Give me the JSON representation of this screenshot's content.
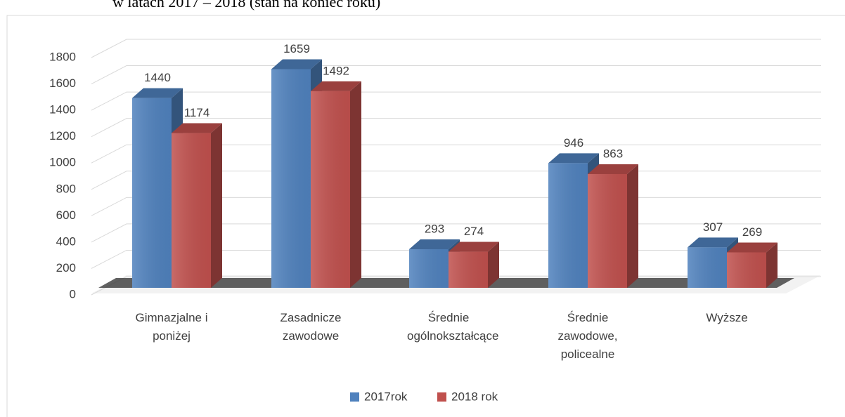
{
  "chart_data": {
    "type": "bar3d",
    "title": "w latach 2017 – 2018 (stan na koniec roku)",
    "categories": [
      "Gimnazjalne i poniżej",
      "Zasadnicze zawodowe",
      "Średnie ogólnokształcące",
      "Średnie zawodowe, policealne",
      "Wyższe"
    ],
    "series": [
      {
        "name": "2017rok",
        "color": "#4f81bd",
        "values": [
          1440,
          1659,
          293,
          946,
          307
        ]
      },
      {
        "name": "2018 rok",
        "color": "#c0504d",
        "values": [
          1174,
          1492,
          274,
          863,
          269
        ]
      }
    ],
    "ylim": [
      0,
      1800
    ],
    "yticks": [
      0,
      200,
      400,
      600,
      800,
      1000,
      1200,
      1400,
      1600,
      1800
    ],
    "grid": true,
    "legend": "bottom"
  }
}
